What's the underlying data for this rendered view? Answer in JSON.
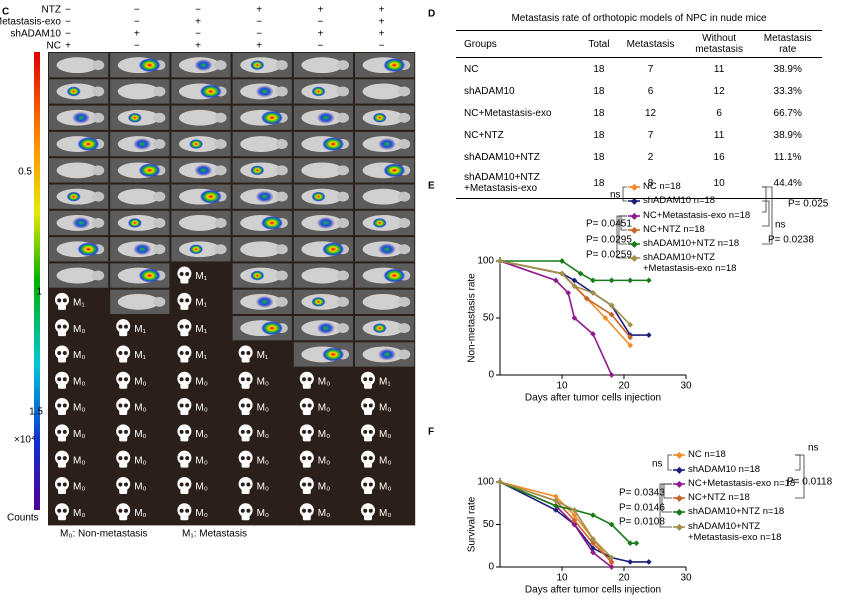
{
  "panel_labels": [
    "C",
    "D",
    "E",
    "F"
  ],
  "panel_c": {
    "treatments": [
      {
        "name": "NTZ",
        "signs": [
          "−",
          "−",
          "−",
          "+",
          "+",
          "+"
        ]
      },
      {
        "name": "Metastasis-exo",
        "signs": [
          "−",
          "−",
          "+",
          "−",
          "−",
          "+"
        ]
      },
      {
        "name": "shADAM10",
        "signs": [
          "−",
          "+",
          "−",
          "−",
          "+",
          "+"
        ]
      },
      {
        "name": "NC",
        "signs": [
          "+",
          "−",
          "+",
          "+",
          "−",
          "−"
        ]
      }
    ],
    "colorbar": {
      "ticks": [
        "0.5",
        "1",
        "1.5"
      ],
      "exponent": "×10⁴",
      "unit": "Counts"
    },
    "grid": [
      [
        null,
        null,
        null,
        null,
        null,
        null
      ],
      [
        null,
        null,
        null,
        null,
        null,
        null
      ],
      [
        null,
        null,
        null,
        null,
        null,
        null
      ],
      [
        null,
        null,
        null,
        null,
        null,
        null
      ],
      [
        null,
        null,
        null,
        null,
        null,
        null
      ],
      [
        null,
        null,
        null,
        null,
        null,
        null
      ],
      [
        null,
        null,
        null,
        null,
        null,
        null
      ],
      [
        null,
        null,
        null,
        null,
        null,
        null
      ],
      [
        null,
        null,
        "M₁",
        null,
        null,
        null
      ],
      [
        "M₁",
        null,
        "M₁",
        null,
        null,
        null
      ],
      [
        "M₀",
        "M₁",
        "M₁",
        null,
        null,
        null
      ],
      [
        "M₀",
        "M₁",
        "M₁",
        "M₁",
        null,
        null
      ],
      [
        "M₀",
        "M₀",
        "M₀",
        "M₀",
        "M₀",
        "M₁"
      ],
      [
        "M₀",
        "M₀",
        "M₀",
        "M₀",
        "M₀",
        "M₀"
      ],
      [
        "M₀",
        "M₀",
        "M₀",
        "M₀",
        "M₀",
        "M₀"
      ],
      [
        "M₀",
        "M₀",
        "M₀",
        "M₀",
        "M₀",
        "M₀"
      ],
      [
        "M₀",
        "M₀",
        "M₀",
        "M₀",
        "M₀",
        "M₀"
      ],
      [
        "M₀",
        "M₀",
        "M₀",
        "M₀",
        "M₀",
        "M₀"
      ]
    ],
    "legend": [
      "M₀: Non-metastasis",
      "M₁: Metastasis"
    ]
  },
  "table": {
    "title": "Metastasis rate of orthotopic models of NPC in nude mice",
    "header": [
      "Groups",
      "Total",
      "Metastasis",
      "Without\nmetastasis",
      "Metastasis\nrate"
    ],
    "rows": [
      [
        "NC",
        18,
        7,
        11,
        "38.9%"
      ],
      [
        "shADAM10",
        18,
        6,
        12,
        "33.3%"
      ],
      [
        "NC+Metastasis-exo",
        18,
        12,
        6,
        "66.7%"
      ],
      [
        "NC+NTZ",
        18,
        7,
        11,
        "38.9%"
      ],
      [
        "shADAM10+NTZ",
        18,
        2,
        16,
        "11.1%"
      ],
      [
        "shADAM10+NTZ\n+Metastasis-exo",
        18,
        8,
        10,
        "44.4%"
      ]
    ]
  },
  "chart_data": [
    {
      "type": "line",
      "x_label": "Days after tumor cells injection",
      "y_label": "Non-metastasis rate",
      "xlim": [
        0,
        30
      ],
      "xticks": [
        10,
        20,
        30
      ],
      "ylim": [
        0,
        100
      ],
      "yticks": [
        0,
        50,
        100
      ],
      "series": [
        {
          "name": "NC n=18",
          "color": "#f28c28",
          "x": [
            0,
            10,
            12,
            14,
            17,
            21
          ],
          "values": [
            100,
            89,
            78,
            67,
            50,
            26
          ]
        },
        {
          "name": "shADAM10 n=18",
          "color": "#1c1f7a",
          "x": [
            0,
            10,
            12,
            15,
            18,
            21,
            24
          ],
          "values": [
            100,
            89,
            83,
            72,
            61,
            35,
            35
          ]
        },
        {
          "name": "NC+Metastasis-exo n=18",
          "color": "#8e1b8e",
          "x": [
            0,
            9,
            11,
            12,
            15,
            18
          ],
          "values": [
            100,
            83,
            72,
            50,
            36,
            0
          ]
        },
        {
          "name": "NC+NTZ n=18",
          "color": "#c8642a",
          "x": [
            0,
            10,
            12,
            14,
            18,
            21
          ],
          "values": [
            100,
            89,
            78,
            67,
            53,
            33
          ]
        },
        {
          "name": "shADAM10+NTZ n=18",
          "color": "#1a7a1a",
          "x": [
            0,
            10,
            13,
            15,
            18,
            21,
            24
          ],
          "values": [
            100,
            100,
            89,
            83,
            83,
            83,
            83
          ]
        },
        {
          "name": "shADAM10+NTZ\n+Metastasis-exo n=18",
          "color": "#a0904a",
          "x": [
            0,
            10,
            12,
            15,
            18,
            21
          ],
          "values": [
            100,
            89,
            78,
            72,
            61,
            44
          ]
        }
      ],
      "annotations": [
        "ns",
        "P= 0.0451",
        "P= 0.0295",
        "P= 0.0259",
        "P= 0.025",
        "ns",
        "P= 0.0238"
      ]
    },
    {
      "type": "line",
      "x_label": "Days after tumor cells injection",
      "y_label": "Survival rate",
      "xlim": [
        0,
        30
      ],
      "xticks": [
        10,
        20,
        30
      ],
      "ylim": [
        0,
        100
      ],
      "yticks": [
        0,
        50,
        100
      ],
      "series": [
        {
          "name": "NC n=18",
          "color": "#f28c28",
          "x": [
            0,
            9,
            12,
            15,
            18
          ],
          "values": [
            100,
            83,
            61,
            33,
            5
          ]
        },
        {
          "name": "shADAM10 n=18",
          "color": "#1c1f7a",
          "x": [
            0,
            9,
            12,
            15,
            18,
            21,
            24
          ],
          "values": [
            100,
            67,
            50,
            22,
            11,
            6,
            6
          ]
        },
        {
          "name": "NC+Metastasis-exo n=18",
          "color": "#8e1b8e",
          "x": [
            0,
            9,
            12,
            15,
            18
          ],
          "values": [
            100,
            72,
            50,
            17,
            0
          ]
        },
        {
          "name": "NC+NTZ n=18",
          "color": "#c8642a",
          "x": [
            0,
            9,
            12,
            15,
            18
          ],
          "values": [
            100,
            78,
            55,
            28,
            6
          ]
        },
        {
          "name": "shADAM10+NTZ n=18",
          "color": "#1a7a1a",
          "x": [
            0,
            9,
            12,
            15,
            18,
            21,
            22
          ],
          "values": [
            100,
            72,
            67,
            61,
            50,
            28,
            28
          ]
        },
        {
          "name": "shADAM10+NTZ\n+Metastasis-exo n=18",
          "color": "#a0904a",
          "x": [
            0,
            9,
            12,
            15,
            18
          ],
          "values": [
            100,
            78,
            67,
            33,
            11
          ]
        }
      ],
      "annotations": [
        "ns",
        "P= 0.0343",
        "P= 0.0146",
        "P= 0.0108",
        "ns",
        "P= 0.0118"
      ]
    }
  ]
}
